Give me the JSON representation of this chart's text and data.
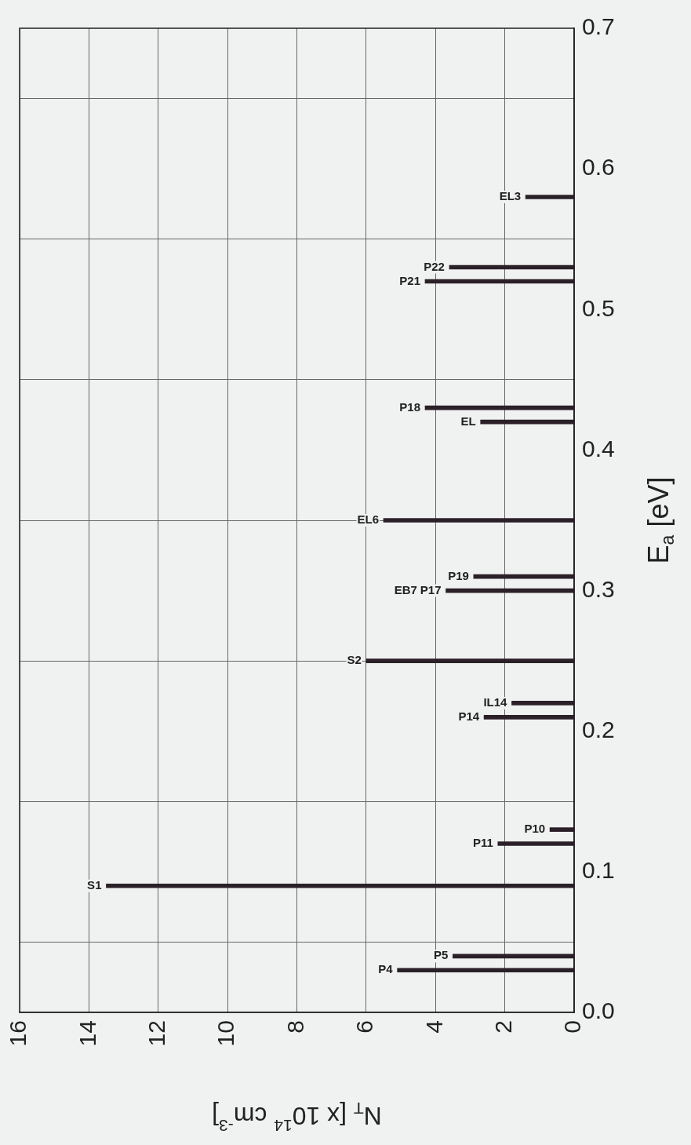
{
  "chart_data": {
    "type": "bar",
    "orientation": "horizontal",
    "xlabel": "N$_{T}$ [x 10$^{14}$ cm$^{-3}$]",
    "ylabel": "E$_{a}$ [eV]",
    "x": [
      0.03,
      0.04,
      0.09,
      0.12,
      0.13,
      0.21,
      0.22,
      0.25,
      0.3,
      0.31,
      0.35,
      0.42,
      0.43,
      0.52,
      0.53,
      0.58
    ],
    "values": [
      5.1,
      3.5,
      13.5,
      2.2,
      0.7,
      2.6,
      1.8,
      6.0,
      3.7,
      2.9,
      5.5,
      2.7,
      4.3,
      4.3,
      3.6,
      1.4
    ],
    "color": "#2b2028",
    "xlim": [
      16,
      0
    ],
    "xticks": [
      0,
      2,
      4,
      6,
      8,
      10,
      12,
      14,
      16
    ],
    "ylim": [
      0,
      0.7
    ],
    "yticks": [
      {
        "value": 0,
        "label": "0.0"
      },
      0.1,
      0.2,
      0.3,
      0.4,
      0.5,
      0.6,
      0.7
    ],
    "grid": true,
    "annotations": [
      {
        "text": "P4",
        "x": 5.1,
        "y": 0.03
      },
      {
        "text": "P5",
        "x": 3.5,
        "y": 0.04
      },
      {
        "text": "S1",
        "x": 13.5,
        "y": 0.09
      },
      {
        "text": "P11",
        "x": 2.2,
        "y": 0.12
      },
      {
        "text": "P10",
        "x": 0.7,
        "y": 0.13
      },
      {
        "text": "P14",
        "x": 2.6,
        "y": 0.21
      },
      {
        "text": "IL14",
        "x": 1.8,
        "y": 0.22
      },
      {
        "text": "S2",
        "x": 6.0,
        "y": 0.25
      },
      {
        "text": "P17",
        "x": 3.7,
        "y": 0.3
      },
      {
        "text": "EB7",
        "x": 3.7,
        "y": 0.3
      },
      {
        "text": "P19",
        "x": 2.9,
        "y": 0.31
      },
      {
        "text": "EL6",
        "x": 5.5,
        "y": 0.35
      },
      {
        "text": "EL",
        "x": 2.7,
        "y": 0.42
      },
      {
        "text": "P18",
        "x": 4.3,
        "y": 0.43
      },
      {
        "text": "P21",
        "x": 4.3,
        "y": 0.52
      },
      {
        "text": "P22",
        "x": 3.6,
        "y": 0.53
      },
      {
        "text": "EL3",
        "x": 1.4,
        "y": 0.58
      }
    ]
  }
}
